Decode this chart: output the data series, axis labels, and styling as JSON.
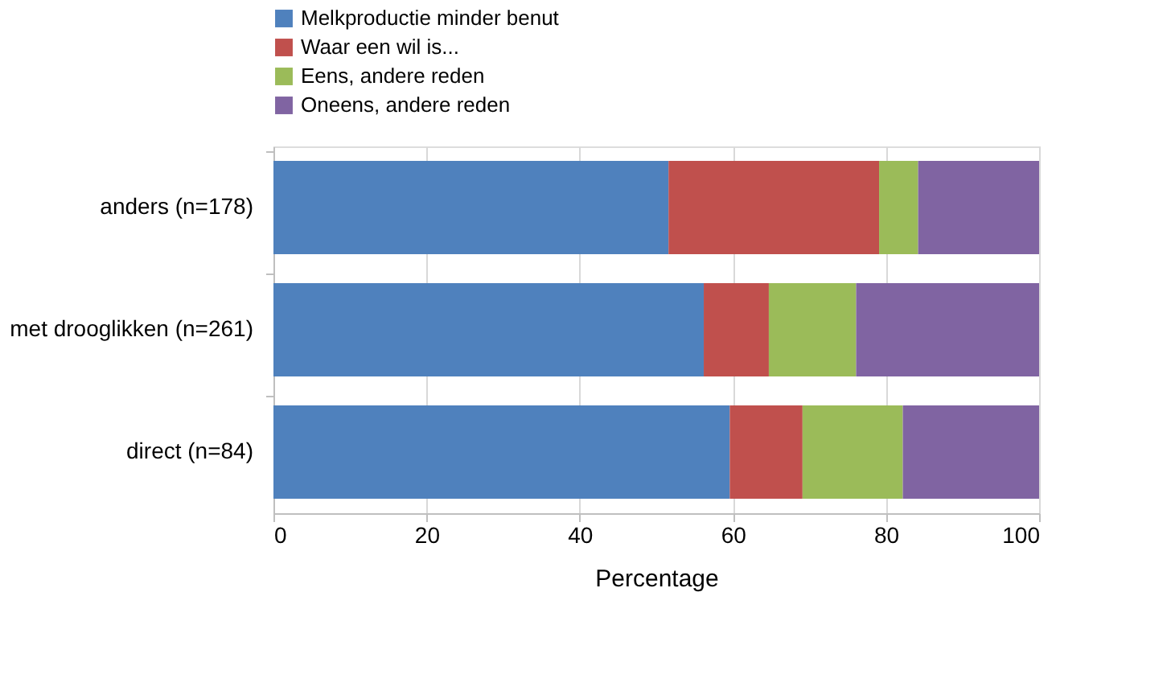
{
  "chart_data": {
    "type": "bar",
    "orientation": "horizontal",
    "stacked": true,
    "xlabel": "Percentage",
    "categories": [
      "anders (n=178)",
      "met drooglikken (n=261)",
      "direct (n=84)"
    ],
    "series": [
      {
        "name": "Melkproductie minder benut",
        "color": "#4f81bd",
        "values": [
          51.6,
          56.2,
          59.6
        ]
      },
      {
        "name": "Waar een wil is...",
        "color": "#c0504d",
        "values": [
          27.5,
          8.5,
          9.5
        ]
      },
      {
        "name": "Eens, andere reden",
        "color": "#9bbb59",
        "values": [
          5.1,
          11.4,
          13.1
        ]
      },
      {
        "name": "Oneens, andere reden",
        "color": "#8064a2",
        "values": [
          15.8,
          23.9,
          17.8
        ]
      }
    ],
    "xlim": [
      0,
      100
    ],
    "xticks": [
      0,
      20,
      40,
      60,
      80,
      100
    ],
    "grid": "x",
    "legend": "top"
  }
}
